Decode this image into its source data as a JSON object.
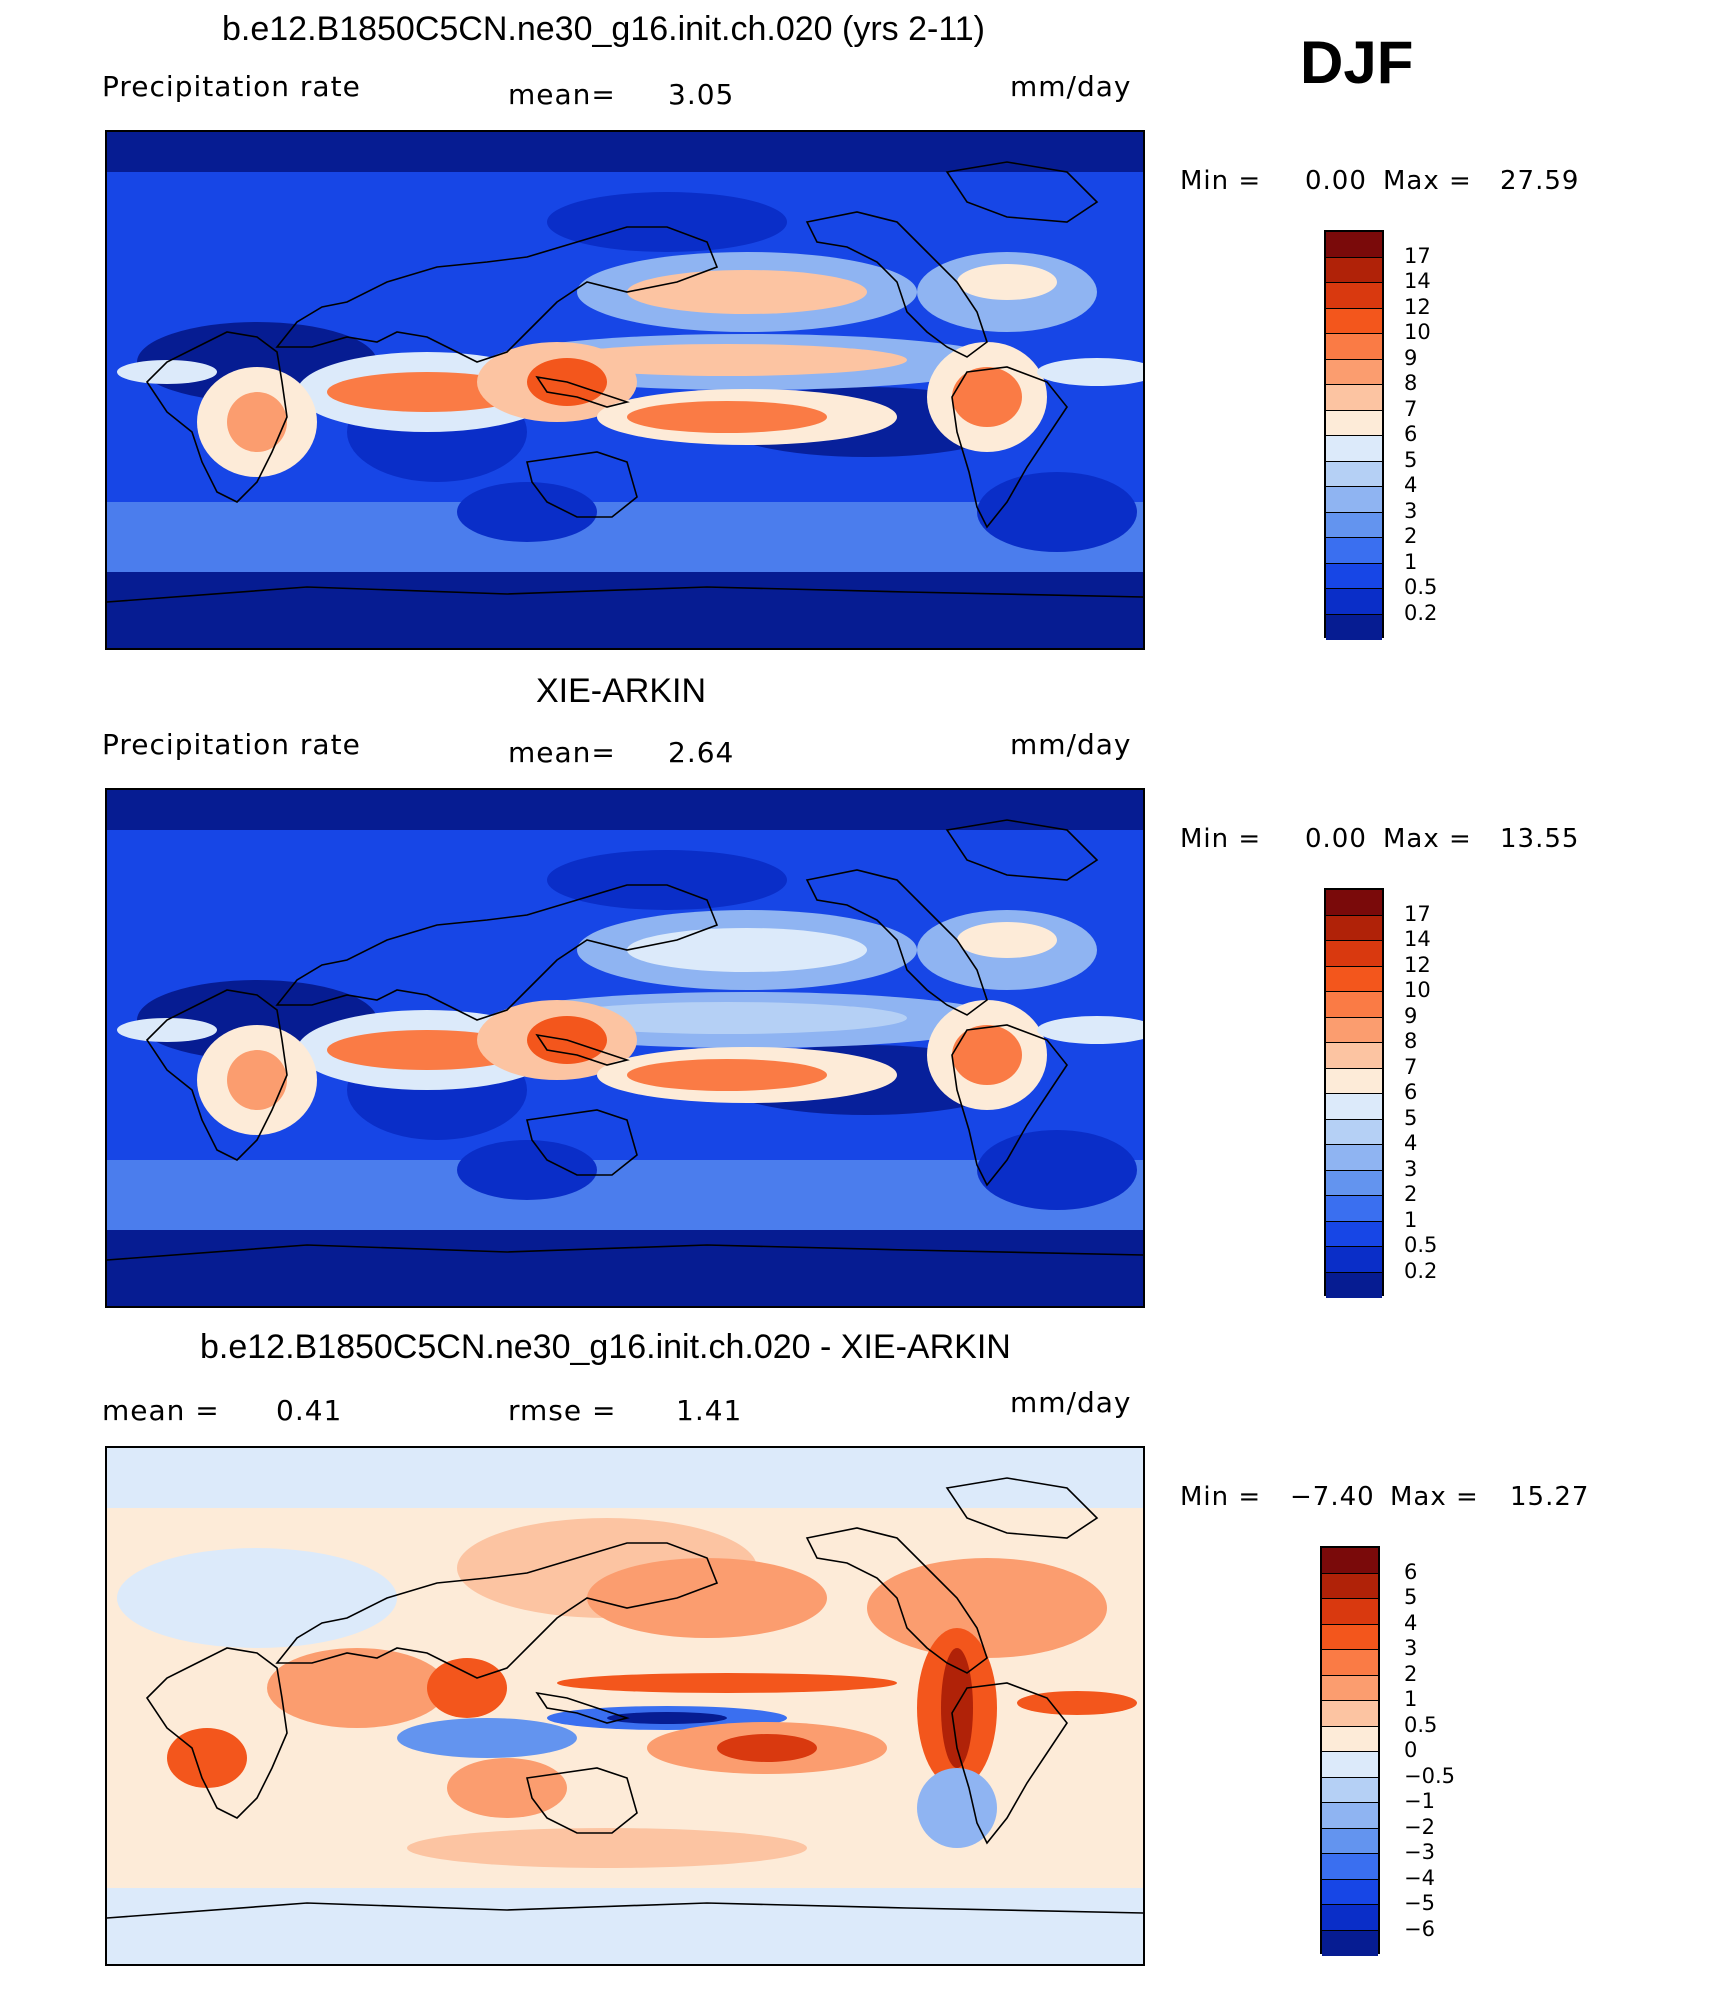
{
  "season": "DJF",
  "chart_data": [
    {
      "type": "heatmap",
      "title": "b.e12.B1850C5CN.ne30_g16.init.ch.020 (yrs 2-11)",
      "left_label": "Precipitation  rate",
      "center_label": "mean=",
      "center_value": "3.05",
      "units": "mm/day",
      "min_label": "Min  =",
      "min_value": "0.00",
      "max_label": "Max  =",
      "max_value": "27.59",
      "colorbar_labels": [
        "17",
        "14",
        "12",
        "10",
        "9",
        "8",
        "7",
        "6",
        "5",
        "4",
        "3",
        "2",
        "1",
        "0.5",
        "0.2"
      ],
      "colorbar_colors": [
        "#7a0a0a",
        "#b02208",
        "#d9390f",
        "#f3561c",
        "#fa7b45",
        "#fb9d6f",
        "#fcc4a2",
        "#fdebd8",
        "#dceafa",
        "#b5d0f5",
        "#8fb4f2",
        "#6394ef",
        "#3a6ff0",
        "#1746e6",
        "#0a2ec8",
        "#061c92"
      ],
      "style": "model"
    },
    {
      "type": "heatmap",
      "title": "XIE-ARKIN",
      "left_label": "Precipitation  rate",
      "center_label": "mean=",
      "center_value": "2.64",
      "units": "mm/day",
      "min_label": "Min  =",
      "min_value": "0.00",
      "max_label": "Max  =",
      "max_value": "13.55",
      "colorbar_labels": [
        "17",
        "14",
        "12",
        "10",
        "9",
        "8",
        "7",
        "6",
        "5",
        "4",
        "3",
        "2",
        "1",
        "0.5",
        "0.2"
      ],
      "colorbar_colors": [
        "#7a0a0a",
        "#b02208",
        "#d9390f",
        "#f3561c",
        "#fa7b45",
        "#fb9d6f",
        "#fcc4a2",
        "#fdebd8",
        "#dceafa",
        "#b5d0f5",
        "#8fb4f2",
        "#6394ef",
        "#3a6ff0",
        "#1746e6",
        "#0a2ec8",
        "#061c92"
      ],
      "style": "obs"
    },
    {
      "type": "heatmap",
      "title": "b.e12.B1850C5CN.ne30_g16.init.ch.020 - XIE-ARKIN",
      "left_label": "mean  =",
      "left_value": "0.41",
      "center_label": "rmse  =",
      "center_value": "1.41",
      "units": "mm/day",
      "min_label": "Min  =",
      "min_value": "−7.40",
      "max_label": "Max  =",
      "max_value": "15.27",
      "colorbar_labels": [
        "6",
        "5",
        "4",
        "3",
        "2",
        "1",
        "0.5",
        "0",
        "−0.5",
        "−1",
        "−2",
        "−3",
        "−4",
        "−5",
        "−6"
      ],
      "colorbar_colors": [
        "#7a0a0a",
        "#b02208",
        "#d9390f",
        "#f3561c",
        "#fa7b45",
        "#fb9d6f",
        "#fcc4a2",
        "#fdebd8",
        "#dceafa",
        "#b5d0f5",
        "#8fb4f2",
        "#6394ef",
        "#3a6ff0",
        "#1746e6",
        "#0a2ec8",
        "#061c92"
      ],
      "style": "diff"
    }
  ]
}
